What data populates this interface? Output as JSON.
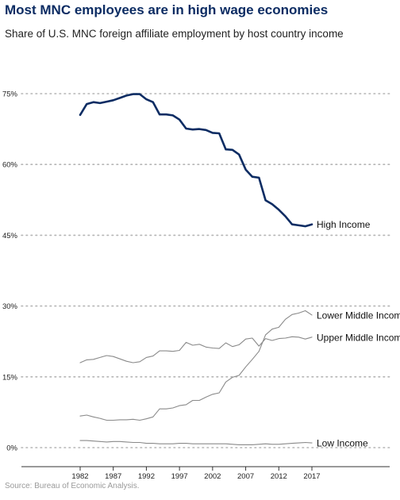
{
  "title": "Most MNC employees are in high wage economies",
  "subtitle": "Share of U.S. MNC foreign affiliate employment by host country income",
  "source": "Source: Bureau of Economic Analysis.",
  "colors": {
    "title": "#0c2c63",
    "high_income": "#0c2c63",
    "other_series": "#8a8a8a",
    "grid": "#b5b5b5"
  },
  "chart_data": {
    "type": "line",
    "title": "Most MNC employees are in high wage economies",
    "subtitle": "Share of U.S. MNC foreign affiliate employment by host country income",
    "xlabel": "",
    "ylabel": "",
    "ylim": [
      0,
      80
    ],
    "xlim": [
      1982,
      2017
    ],
    "y_ticks": [
      0,
      15,
      30,
      45,
      60,
      75
    ],
    "y_tick_labels": [
      "0%",
      "15%",
      "30%",
      "45%",
      "60%",
      "75%"
    ],
    "x_ticks": [
      1982,
      1987,
      1992,
      1997,
      2002,
      2007,
      2012,
      2017
    ],
    "x_tick_labels": [
      "1982",
      "1987",
      "1992",
      "1997",
      "2002",
      "2007",
      "2012",
      "2017"
    ],
    "grid": "horizontal dotted",
    "legend": "direct labels at line ends",
    "x": [
      1982,
      1983,
      1984,
      1985,
      1986,
      1987,
      1988,
      1989,
      1990,
      1991,
      1992,
      1993,
      1994,
      1995,
      1996,
      1997,
      1998,
      1999,
      2000,
      2001,
      2002,
      2003,
      2004,
      2005,
      2006,
      2007,
      2008,
      2009,
      2010,
      2011,
      2012,
      2013,
      2014,
      2015,
      2016,
      2017
    ],
    "series": [
      {
        "name": "High Income",
        "values": [
          70.5,
          72.8,
          73.2,
          73.0,
          73.3,
          73.6,
          74.1,
          74.6,
          74.9,
          74.9,
          73.8,
          73.2,
          70.6,
          70.6,
          70.4,
          69.5,
          67.6,
          67.4,
          67.5,
          67.3,
          66.7,
          66.6,
          63.2,
          63.1,
          62.1,
          58.9,
          57.4,
          57.2,
          52.4,
          51.6,
          50.4,
          49.0,
          47.3,
          47.1,
          46.9,
          47.3
        ]
      },
      {
        "name": "Lower Middle Income",
        "values": [
          6.7,
          6.9,
          6.5,
          6.2,
          5.8,
          5.8,
          5.9,
          5.9,
          6.0,
          5.8,
          6.1,
          6.5,
          8.2,
          8.2,
          8.4,
          8.9,
          9.1,
          10.0,
          10.0,
          10.7,
          11.3,
          11.6,
          13.9,
          14.9,
          15.3,
          17.1,
          18.7,
          20.4,
          23.9,
          25.1,
          25.5,
          27.2,
          28.2,
          28.5,
          29.0,
          28.1
        ]
      },
      {
        "name": "Upper Middle Income",
        "values": [
          18.0,
          18.6,
          18.7,
          19.1,
          19.5,
          19.3,
          18.8,
          18.3,
          18.0,
          18.2,
          19.1,
          19.4,
          20.5,
          20.5,
          20.4,
          20.6,
          22.3,
          21.7,
          21.9,
          21.3,
          21.1,
          21.0,
          22.2,
          21.4,
          21.8,
          23.0,
          23.2,
          21.5,
          23.1,
          22.7,
          23.1,
          23.2,
          23.5,
          23.4,
          23.0,
          23.4
        ]
      },
      {
        "name": "Low Income",
        "values": [
          1.5,
          1.5,
          1.4,
          1.3,
          1.2,
          1.3,
          1.3,
          1.2,
          1.1,
          1.1,
          0.9,
          0.9,
          0.8,
          0.8,
          0.8,
          0.9,
          0.9,
          0.8,
          0.8,
          0.8,
          0.8,
          0.8,
          0.8,
          0.7,
          0.6,
          0.6,
          0.6,
          0.7,
          0.8,
          0.7,
          0.7,
          0.8,
          0.9,
          1.0,
          1.1,
          1.0
        ]
      }
    ]
  }
}
